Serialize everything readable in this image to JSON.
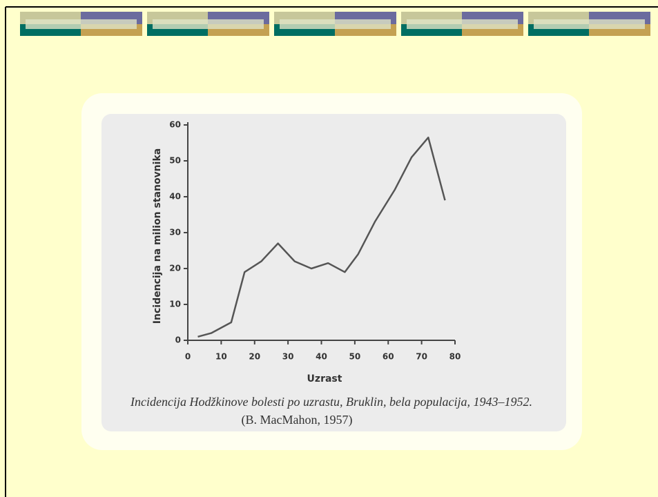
{
  "chart_data": {
    "type": "line",
    "title": "Incidencija Hodžkinove bolesti po uzrastu, Bruklin, bela populacija, 1943–1952.",
    "source": "(B. MacMahon, 1957)",
    "x_label": "Uzrast",
    "y_label": "Incidencija na milion stanovnika",
    "x": [
      3,
      7,
      13,
      17,
      22,
      27,
      32,
      37,
      42,
      47,
      51,
      56,
      62,
      67,
      72,
      77
    ],
    "values": [
      1,
      2,
      5,
      19,
      22,
      27,
      22,
      20,
      21.5,
      19,
      24,
      33,
      42,
      51,
      56.5,
      39
    ],
    "color": "#555555",
    "xlim": [
      0,
      80
    ],
    "xticks": [
      0,
      10,
      20,
      30,
      40,
      50,
      60,
      70,
      80
    ],
    "ylim": [
      0,
      60
    ],
    "yticks": [
      0,
      10,
      20,
      30,
      40,
      50,
      60
    ],
    "grid": false
  }
}
